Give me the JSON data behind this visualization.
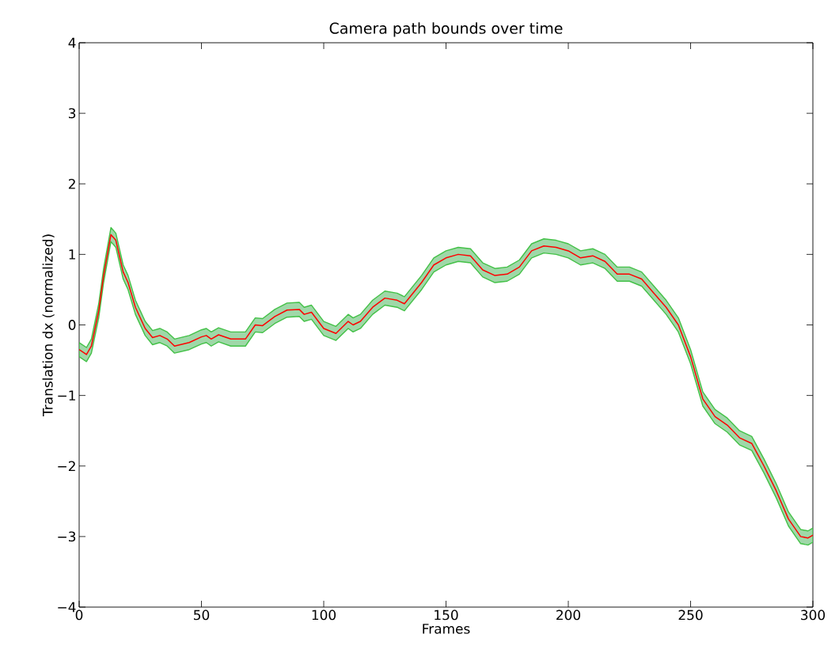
{
  "chart_data": {
    "type": "line",
    "title": "Camera path bounds over time",
    "xlabel": "Frames",
    "ylabel": "Translation dx (normalized)",
    "xlim": [
      0,
      300
    ],
    "ylim": [
      -4,
      4
    ],
    "xticks": [
      0,
      50,
      100,
      150,
      200,
      250,
      300
    ],
    "yticks": [
      {
        "value": -4,
        "label": "−4"
      },
      {
        "value": -3,
        "label": "−3"
      },
      {
        "value": -2,
        "label": "−2"
      },
      {
        "value": -1,
        "label": "−1"
      },
      0,
      1,
      2,
      3,
      4
    ],
    "x": [
      0,
      3,
      5,
      8,
      10,
      13,
      15,
      18,
      20,
      23,
      27,
      30,
      33,
      36,
      39,
      45,
      50,
      52,
      54,
      57,
      62,
      68,
      72,
      75,
      80,
      85,
      90,
      92,
      95,
      100,
      105,
      110,
      112,
      115,
      120,
      125,
      130,
      133,
      140,
      145,
      150,
      155,
      160,
      165,
      170,
      175,
      180,
      185,
      190,
      195,
      200,
      205,
      210,
      215,
      220,
      225,
      230,
      235,
      240,
      245,
      250,
      255,
      260,
      265,
      270,
      275,
      280,
      285,
      290,
      295,
      298,
      300
    ],
    "series": [
      {
        "color": "#ff0000",
        "values": [
          -0.35,
          -0.42,
          -0.3,
          0.2,
          0.7,
          1.28,
          1.2,
          0.75,
          0.6,
          0.25,
          -0.05,
          -0.18,
          -0.15,
          -0.2,
          -0.3,
          -0.25,
          -0.17,
          -0.15,
          -0.2,
          -0.14,
          -0.2,
          -0.2,
          0.0,
          -0.01,
          0.12,
          0.21,
          0.22,
          0.15,
          0.18,
          -0.05,
          -0.12,
          0.05,
          0.0,
          0.05,
          0.25,
          0.38,
          0.35,
          0.3,
          0.6,
          0.85,
          0.95,
          1.0,
          0.98,
          0.78,
          0.7,
          0.72,
          0.82,
          1.05,
          1.12,
          1.1,
          1.05,
          0.95,
          0.98,
          0.9,
          0.72,
          0.72,
          0.65,
          0.45,
          0.25,
          0.0,
          -0.45,
          -1.05,
          -1.3,
          -1.42,
          -1.6,
          -1.68,
          -2.0,
          -2.35,
          -2.75,
          -3.0,
          -3.02,
          -2.98
        ],
        "lower": [
          -0.45,
          -0.52,
          -0.4,
          0.1,
          0.6,
          1.18,
          1.1,
          0.65,
          0.5,
          0.15,
          -0.15,
          -0.28,
          -0.25,
          -0.3,
          -0.4,
          -0.35,
          -0.27,
          -0.25,
          -0.3,
          -0.24,
          -0.3,
          -0.3,
          -0.1,
          -0.11,
          0.02,
          0.11,
          0.12,
          0.05,
          0.08,
          -0.15,
          -0.22,
          -0.05,
          -0.1,
          -0.05,
          0.15,
          0.28,
          0.25,
          0.2,
          0.5,
          0.75,
          0.85,
          0.9,
          0.88,
          0.68,
          0.6,
          0.62,
          0.72,
          0.95,
          1.02,
          1.0,
          0.95,
          0.85,
          0.88,
          0.8,
          0.62,
          0.62,
          0.55,
          0.35,
          0.15,
          -0.1,
          -0.55,
          -1.15,
          -1.4,
          -1.52,
          -1.7,
          -1.78,
          -2.1,
          -2.45,
          -2.85,
          -3.1,
          -3.12,
          -3.08
        ],
        "upper": [
          -0.25,
          -0.32,
          -0.2,
          0.3,
          0.8,
          1.38,
          1.3,
          0.85,
          0.7,
          0.35,
          0.05,
          -0.08,
          -0.05,
          -0.1,
          -0.2,
          -0.15,
          -0.07,
          -0.05,
          -0.1,
          -0.04,
          -0.1,
          -0.1,
          0.1,
          0.09,
          0.22,
          0.31,
          0.32,
          0.25,
          0.28,
          0.05,
          -0.02,
          0.15,
          0.1,
          0.15,
          0.35,
          0.48,
          0.45,
          0.4,
          0.7,
          0.95,
          1.05,
          1.1,
          1.08,
          0.88,
          0.8,
          0.82,
          0.92,
          1.15,
          1.22,
          1.2,
          1.15,
          1.05,
          1.08,
          1.0,
          0.82,
          0.82,
          0.75,
          0.55,
          0.35,
          0.1,
          -0.35,
          -0.95,
          -1.2,
          -1.32,
          -1.5,
          -1.58,
          -1.9,
          -2.25,
          -2.65,
          -2.9,
          -2.92,
          -2.88
        ]
      }
    ]
  }
}
